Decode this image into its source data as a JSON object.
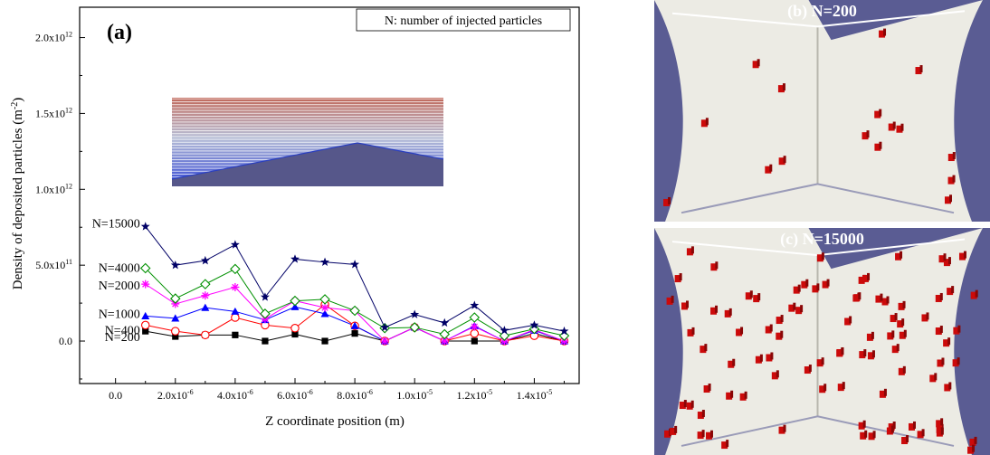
{
  "chart_data": {
    "type": "line",
    "panel_label": "(a)",
    "xlabel": "Z coordinate position (m)",
    "ylabel_main": "Density of deposited particles (m",
    "ylabel_sup": "-2",
    "ylabel_tail": ")",
    "legend_note": "N: number of injected particles",
    "xlim": [
      -1.2e-06,
      1.55e-05
    ],
    "ylim": [
      -280000000000.0,
      2200000000000.0
    ],
    "x": [
      1e-06,
      2e-06,
      3e-06,
      4e-06,
      5e-06,
      6e-06,
      7e-06,
      8e-06,
      9e-06,
      1e-05,
      1.1e-05,
      1.2e-05,
      1.3e-05,
      1.4e-05,
      1.5e-05
    ],
    "x_ticks": [
      {
        "v": 0,
        "mant": "0.0",
        "exp": ""
      },
      {
        "v": 2e-06,
        "mant": "2.0x10",
        "exp": "-6"
      },
      {
        "v": 4e-06,
        "mant": "4.0x10",
        "exp": "-6"
      },
      {
        "v": 6e-06,
        "mant": "6.0x10",
        "exp": "-6"
      },
      {
        "v": 8e-06,
        "mant": "8.0x10",
        "exp": "-6"
      },
      {
        "v": 1e-05,
        "mant": "1.0x10",
        "exp": "-5"
      },
      {
        "v": 1.2e-05,
        "mant": "1.2x10",
        "exp": "-5"
      },
      {
        "v": 1.4e-05,
        "mant": "1.4x10",
        "exp": "-5"
      }
    ],
    "y_ticks": [
      {
        "v": 0,
        "mant": "0.0",
        "exp": ""
      },
      {
        "v": 500000000000.0,
        "mant": "5.0x10",
        "exp": "11"
      },
      {
        "v": 1000000000000.0,
        "mant": "1.0x10",
        "exp": "12"
      },
      {
        "v": 1500000000000.0,
        "mant": "1.5x10",
        "exp": "12"
      },
      {
        "v": 2000000000000.0,
        "mant": "2.0x10",
        "exp": "12"
      }
    ],
    "series": [
      {
        "name": "N=200",
        "label": "N=200",
        "color": "#000000",
        "marker": "filled-square",
        "values": [
          65000000000.0,
          30000000000.0,
          40000000000.0,
          40000000000.0,
          0.0,
          45000000000.0,
          0.0,
          50000000000.0,
          0.0,
          90000000000.0,
          0.0,
          0.0,
          0.0,
          50000000000.0,
          0.0
        ]
      },
      {
        "name": "N=400",
        "label": "N=400",
        "color": "#ff0000",
        "marker": "open-circle",
        "values": [
          105000000000.0,
          65000000000.0,
          40000000000.0,
          155000000000.0,
          105000000000.0,
          85000000000.0,
          240000000000.0,
          100000000000.0,
          0.0,
          90000000000.0,
          0.0,
          50000000000.0,
          0.0,
          35000000000.0,
          0.0
        ]
      },
      {
        "name": "N=1000",
        "label": "N=1000",
        "color": "#0000ff",
        "marker": "filled-triangle",
        "values": [
          165000000000.0,
          150000000000.0,
          220000000000.0,
          195000000000.0,
          140000000000.0,
          225000000000.0,
          180000000000.0,
          100000000000.0,
          0.0,
          90000000000.0,
          0.0,
          100000000000.0,
          0.0,
          70000000000.0,
          0.0
        ]
      },
      {
        "name": "N=2000",
        "label": "N=2000",
        "color": "#ff00ff",
        "marker": "asterisk",
        "values": [
          375000000000.0,
          245000000000.0,
          300000000000.0,
          355000000000.0,
          145000000000.0,
          265000000000.0,
          220000000000.0,
          200000000000.0,
          0.0,
          90000000000.0,
          0.0,
          95000000000.0,
          0.0,
          75000000000.0,
          0.0
        ]
      },
      {
        "name": "N=4000",
        "label": "N=4000",
        "color": "#009000",
        "marker": "open-diamond",
        "values": [
          480000000000.0,
          280000000000.0,
          375000000000.0,
          475000000000.0,
          180000000000.0,
          265000000000.0,
          275000000000.0,
          200000000000.0,
          85000000000.0,
          90000000000.0,
          45000000000.0,
          155000000000.0,
          35000000000.0,
          80000000000.0,
          35000000000.0
        ]
      },
      {
        "name": "N=15000",
        "label": "N=15000",
        "color": "#000066",
        "marker": "star",
        "values": [
          755000000000.0,
          500000000000.0,
          530000000000.0,
          635000000000.0,
          290000000000.0,
          540000000000.0,
          520000000000.0,
          505000000000.0,
          90000000000.0,
          175000000000.0,
          120000000000.0,
          235000000000.0,
          70000000000.0,
          105000000000.0,
          65000000000.0
        ]
      }
    ]
  },
  "panels": [
    {
      "id": "b",
      "title": "(b) N=200",
      "particles": 16
    },
    {
      "id": "c",
      "title": "(c) N=15000",
      "particles": 90
    }
  ],
  "colors": {
    "panel_background": "#5a5c93",
    "wall": "#ecebe4",
    "particle": "#cc0a0a"
  }
}
